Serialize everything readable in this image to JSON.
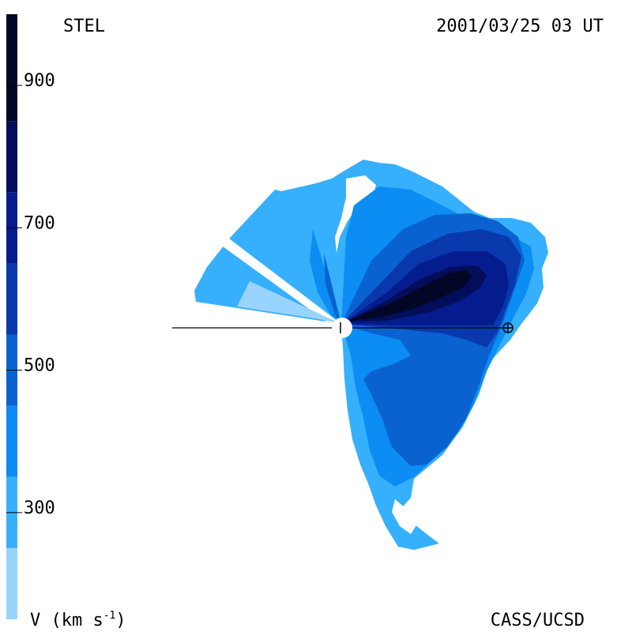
{
  "header": {
    "left_label": "STEL",
    "right_label": "2001/03/25 03 UT"
  },
  "footer": {
    "left_label": "V (km s",
    "left_exponent": "-1",
    "left_close": ")",
    "right_label": "CASS/UCSD"
  },
  "colorbar": {
    "min": 150,
    "max": 1000,
    "ticks": [
      300,
      500,
      700,
      900
    ],
    "colors": [
      "#99d4fe",
      "#36b0fd",
      "#0b8df3",
      "#0a62d1",
      "#0838ab",
      "#051c8f",
      "#030d59",
      "#020726"
    ]
  },
  "chart_data": {
    "type": "heatmap",
    "title": "",
    "quantity": "solar wind velocity",
    "unit": "km s-1",
    "levels": [
      {
        "min": 150,
        "max": 250,
        "color": "#99d4fe"
      },
      {
        "min": 250,
        "max": 350,
        "color": "#36b0fd"
      },
      {
        "min": 350,
        "max": 450,
        "color": "#0b8df3"
      },
      {
        "min": 450,
        "max": 550,
        "color": "#0a62d1"
      },
      {
        "min": 550,
        "max": 650,
        "color": "#0838ab"
      },
      {
        "min": 650,
        "max": 750,
        "color": "#051c8f"
      },
      {
        "min": 750,
        "max": 850,
        "color": "#030d59"
      },
      {
        "min": 850,
        "max": 1000,
        "color": "#020726"
      }
    ],
    "markers": [
      "sun",
      "earth"
    ]
  }
}
